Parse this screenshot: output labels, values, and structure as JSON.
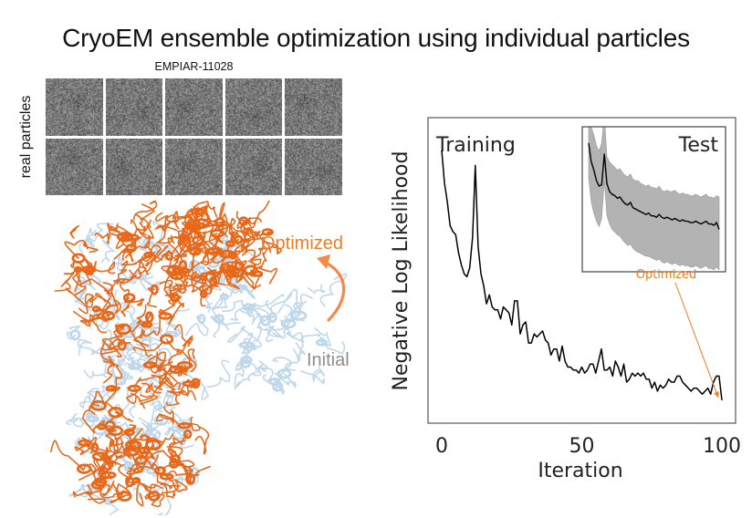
{
  "title": "CryoEM ensemble optimization using individual particles",
  "particles": {
    "caption": "EMPIAR-11028",
    "side_label": "real particles",
    "rows": 2,
    "cols": 5
  },
  "structure": {
    "optimized_label": "Optimized",
    "initial_label": "Initial",
    "optimized_color": "#e8681a",
    "initial_color": "#b9d3e8",
    "arrow_color": "#f4894a"
  },
  "chart_data": {
    "type": "line",
    "xlabel": "Iteration",
    "ylabel": "Negative Log Likelihood",
    "xlim": [
      -5,
      105
    ],
    "ylim": [
      0,
      1
    ],
    "xticks": [
      0,
      50,
      100
    ],
    "yticks": [],
    "grid": false,
    "series": [
      {
        "name": "Training",
        "color": "#000000",
        "x": [
          0,
          1,
          2,
          3,
          4,
          5,
          6,
          7,
          8,
          9,
          10,
          11,
          12,
          13,
          14,
          15,
          16,
          17,
          18,
          19,
          20,
          21,
          22,
          23,
          24,
          25,
          26,
          27,
          28,
          29,
          30,
          31,
          32,
          33,
          34,
          35,
          36,
          37,
          38,
          39,
          40,
          41,
          42,
          43,
          44,
          45,
          46,
          47,
          48,
          49,
          50,
          51,
          52,
          53,
          54,
          55,
          56,
          57,
          58,
          59,
          60,
          61,
          62,
          63,
          64,
          65,
          66,
          67,
          68,
          69,
          70,
          71,
          72,
          73,
          74,
          75,
          76,
          77,
          78,
          79,
          80,
          81,
          82,
          83,
          84,
          85,
          86,
          87,
          88,
          89,
          90,
          91,
          92,
          93,
          94,
          95,
          96,
          97,
          98,
          99,
          100
        ],
        "values": [
          0.87,
          0.76,
          0.7,
          0.62,
          0.6,
          0.59,
          0.53,
          0.49,
          0.46,
          0.45,
          0.48,
          0.58,
          0.82,
          0.55,
          0.46,
          0.42,
          0.36,
          0.39,
          0.35,
          0.34,
          0.34,
          0.31,
          0.35,
          0.34,
          0.33,
          0.29,
          0.37,
          0.37,
          0.26,
          0.29,
          0.3,
          0.23,
          0.23,
          0.26,
          0.25,
          0.26,
          0.27,
          0.24,
          0.23,
          0.19,
          0.21,
          0.21,
          0.17,
          0.22,
          0.17,
          0.15,
          0.15,
          0.14,
          0.14,
          0.13,
          0.15,
          0.13,
          0.14,
          0.16,
          0.16,
          0.13,
          0.17,
          0.21,
          0.14,
          0.14,
          0.15,
          0.12,
          0.17,
          0.15,
          0.12,
          0.16,
          0.1,
          0.11,
          0.13,
          0.12,
          0.13,
          0.12,
          0.13,
          0.11,
          0.11,
          0.08,
          0.1,
          0.07,
          0.09,
          0.08,
          0.09,
          0.11,
          0.1,
          0.1,
          0.12,
          0.12,
          0.1,
          0.09,
          0.08,
          0.07,
          0.08,
          0.08,
          0.07,
          0.06,
          0.07,
          0.08,
          0.06,
          0.1,
          0.12,
          0.12,
          0.04
        ],
        "label": "Training"
      }
    ],
    "annotations": [
      {
        "text": "Optimized",
        "color": "#f07b22",
        "points_to": [
          100,
          0.04
        ]
      }
    ],
    "inset": {
      "title": "Test",
      "type": "area+line",
      "xlim": [
        0,
        100
      ],
      "ylim": [
        0,
        1
      ],
      "band_color": "#b3b3b3",
      "line_color": "#000000",
      "x": [
        0,
        2,
        4,
        6,
        8,
        10,
        12,
        14,
        16,
        18,
        20,
        22,
        24,
        26,
        28,
        30,
        32,
        34,
        36,
        38,
        40,
        42,
        44,
        46,
        48,
        50,
        52,
        54,
        56,
        58,
        60,
        62,
        64,
        66,
        68,
        70,
        72,
        74,
        76,
        78,
        80,
        82,
        84,
        86,
        88,
        90,
        92,
        94,
        96,
        98,
        100
      ],
      "mean": [
        0.88,
        0.74,
        0.68,
        0.6,
        0.56,
        0.57,
        0.8,
        0.58,
        0.52,
        0.5,
        0.49,
        0.47,
        0.48,
        0.45,
        0.43,
        0.42,
        0.44,
        0.4,
        0.39,
        0.38,
        0.37,
        0.36,
        0.35,
        0.36,
        0.34,
        0.34,
        0.33,
        0.35,
        0.33,
        0.32,
        0.33,
        0.32,
        0.31,
        0.32,
        0.31,
        0.3,
        0.31,
        0.3,
        0.3,
        0.29,
        0.29,
        0.3,
        0.29,
        0.28,
        0.29,
        0.3,
        0.28,
        0.28,
        0.27,
        0.29,
        0.24
      ],
      "upper": [
        1.1,
        1.0,
        0.94,
        0.86,
        0.82,
        0.88,
        1.1,
        0.78,
        0.74,
        0.72,
        0.7,
        0.68,
        0.69,
        0.66,
        0.64,
        0.63,
        0.65,
        0.61,
        0.6,
        0.6,
        0.58,
        0.57,
        0.56,
        0.57,
        0.55,
        0.55,
        0.54,
        0.56,
        0.53,
        0.52,
        0.53,
        0.52,
        0.52,
        0.53,
        0.51,
        0.5,
        0.51,
        0.5,
        0.5,
        0.49,
        0.49,
        0.5,
        0.49,
        0.48,
        0.49,
        0.5,
        0.48,
        0.48,
        0.47,
        0.49,
        0.48
      ],
      "lower": [
        0.62,
        0.44,
        0.36,
        0.3,
        0.26,
        0.32,
        0.6,
        0.34,
        0.28,
        0.24,
        0.22,
        0.2,
        0.19,
        0.16,
        0.14,
        0.12,
        0.13,
        0.1,
        0.08,
        0.07,
        0.06,
        0.05,
        0.04,
        0.04,
        0.03,
        0.02,
        0.01,
        0.02,
        0.0,
        -0.01,
        0.0,
        -0.01,
        -0.02,
        -0.01,
        -0.02,
        -0.03,
        -0.02,
        -0.03,
        -0.03,
        -0.04,
        -0.04,
        -0.03,
        -0.04,
        -0.05,
        -0.04,
        -0.03,
        -0.05,
        -0.05,
        -0.06,
        -0.04,
        -0.06
      ]
    }
  }
}
